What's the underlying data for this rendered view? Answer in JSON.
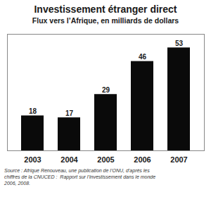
{
  "chart_data": {
    "type": "bar",
    "title": "Investissement étranger direct",
    "subtitle": "Flux vers l’Afrique, en milliards de dollars",
    "caption": "Source : Afrique Renouveau, une publication de l’ONU, d’après les\nchiffres de la CNUCED :  Rapport sur l’investissement dans le monde\n2006, 2008.",
    "categories": [
      "2003",
      "2004",
      "2005",
      "2006",
      "2007"
    ],
    "values": [
      18,
      17,
      29,
      46,
      53
    ],
    "color": "#0a0a0a",
    "ylim": [
      0,
      60
    ],
    "grid": false,
    "data_labels": true,
    "tick_labels": "x"
  }
}
